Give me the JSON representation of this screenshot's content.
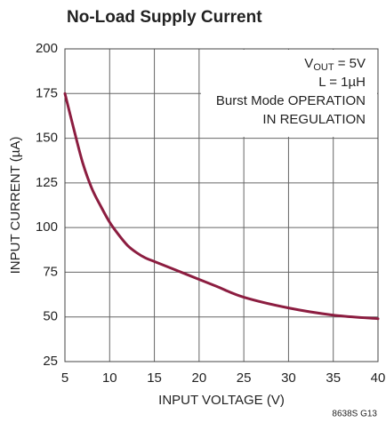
{
  "chart_data": {
    "type": "line",
    "title": "No-Load Supply Current",
    "x_label": "INPUT VOLTAGE (V)",
    "y_label": "INPUT CURRENT (µA)",
    "annotations": [
      [
        "V",
        "OUT",
        " = 5V"
      ],
      "L = 1µH",
      "Burst Mode OPERATION",
      "IN REGULATION"
    ],
    "footnote": "8638S G13",
    "x": [
      5,
      6,
      7,
      8,
      9,
      10,
      11,
      12,
      13,
      14,
      15,
      17,
      20,
      22,
      25,
      30,
      35,
      40
    ],
    "values": [
      175,
      155,
      136,
      122,
      112,
      103,
      96,
      90,
      86,
      83,
      81,
      77,
      71,
      67,
      61,
      55,
      51,
      49
    ],
    "color": "#8c1d40",
    "xlim": [
      5,
      40
    ],
    "xticks": [
      5,
      10,
      15,
      20,
      25,
      30,
      35,
      40
    ],
    "ylim": [
      25,
      200
    ],
    "yticks": [
      25,
      50,
      75,
      100,
      125,
      150,
      175,
      200
    ],
    "grid": true
  }
}
